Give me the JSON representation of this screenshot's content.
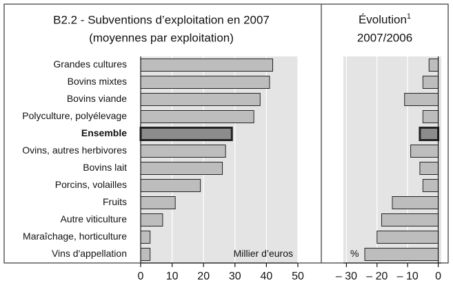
{
  "chart_data": [
    {
      "type": "barh",
      "title": "B2.2 - Subventions d’exploitation en 2007",
      "subtitle": "(moyennes par exploitation)",
      "categories": [
        "Grandes cultures",
        "Bovins mixtes",
        "Bovins viande",
        "Polyculture, polyélevage",
        "Ensemble",
        "Ovins, autres herbivores",
        "Bovins lait",
        "Porcins, volailles",
        "Fruits",
        "Autre viticulture",
        "Maraîchage, horticulture",
        "Vins d'appellation"
      ],
      "values": [
        42,
        41,
        38,
        36,
        29,
        27,
        26,
        19,
        11,
        7,
        3,
        3
      ],
      "xlabel": "Millier d’euros",
      "xlim": [
        0,
        50
      ],
      "xticks": [
        0,
        10,
        20,
        30,
        40,
        50
      ],
      "color": "#bdbdbd",
      "highlight_color": "#8c8c8c",
      "highlight": 4,
      "grid": true
    },
    {
      "type": "barh",
      "title": "Évolution",
      "title_sup": "1",
      "subtitle": "2007/2006",
      "values": [
        -3,
        -5,
        -11,
        -5,
        -6,
        -9,
        -6,
        -5,
        -15,
        -18.5,
        -20,
        -24
      ],
      "xlabel": "%",
      "xlim": [
        -31,
        1
      ],
      "xticks": [
        {
          "value": -30,
          "label": "– 30"
        },
        {
          "value": -20,
          "label": "– 20"
        },
        {
          "value": -10,
          "label": "– 10"
        },
        0
      ],
      "color": "#bdbdbd",
      "highlight_color": "#8c8c8c",
      "highlight": 4,
      "grid": true
    }
  ]
}
